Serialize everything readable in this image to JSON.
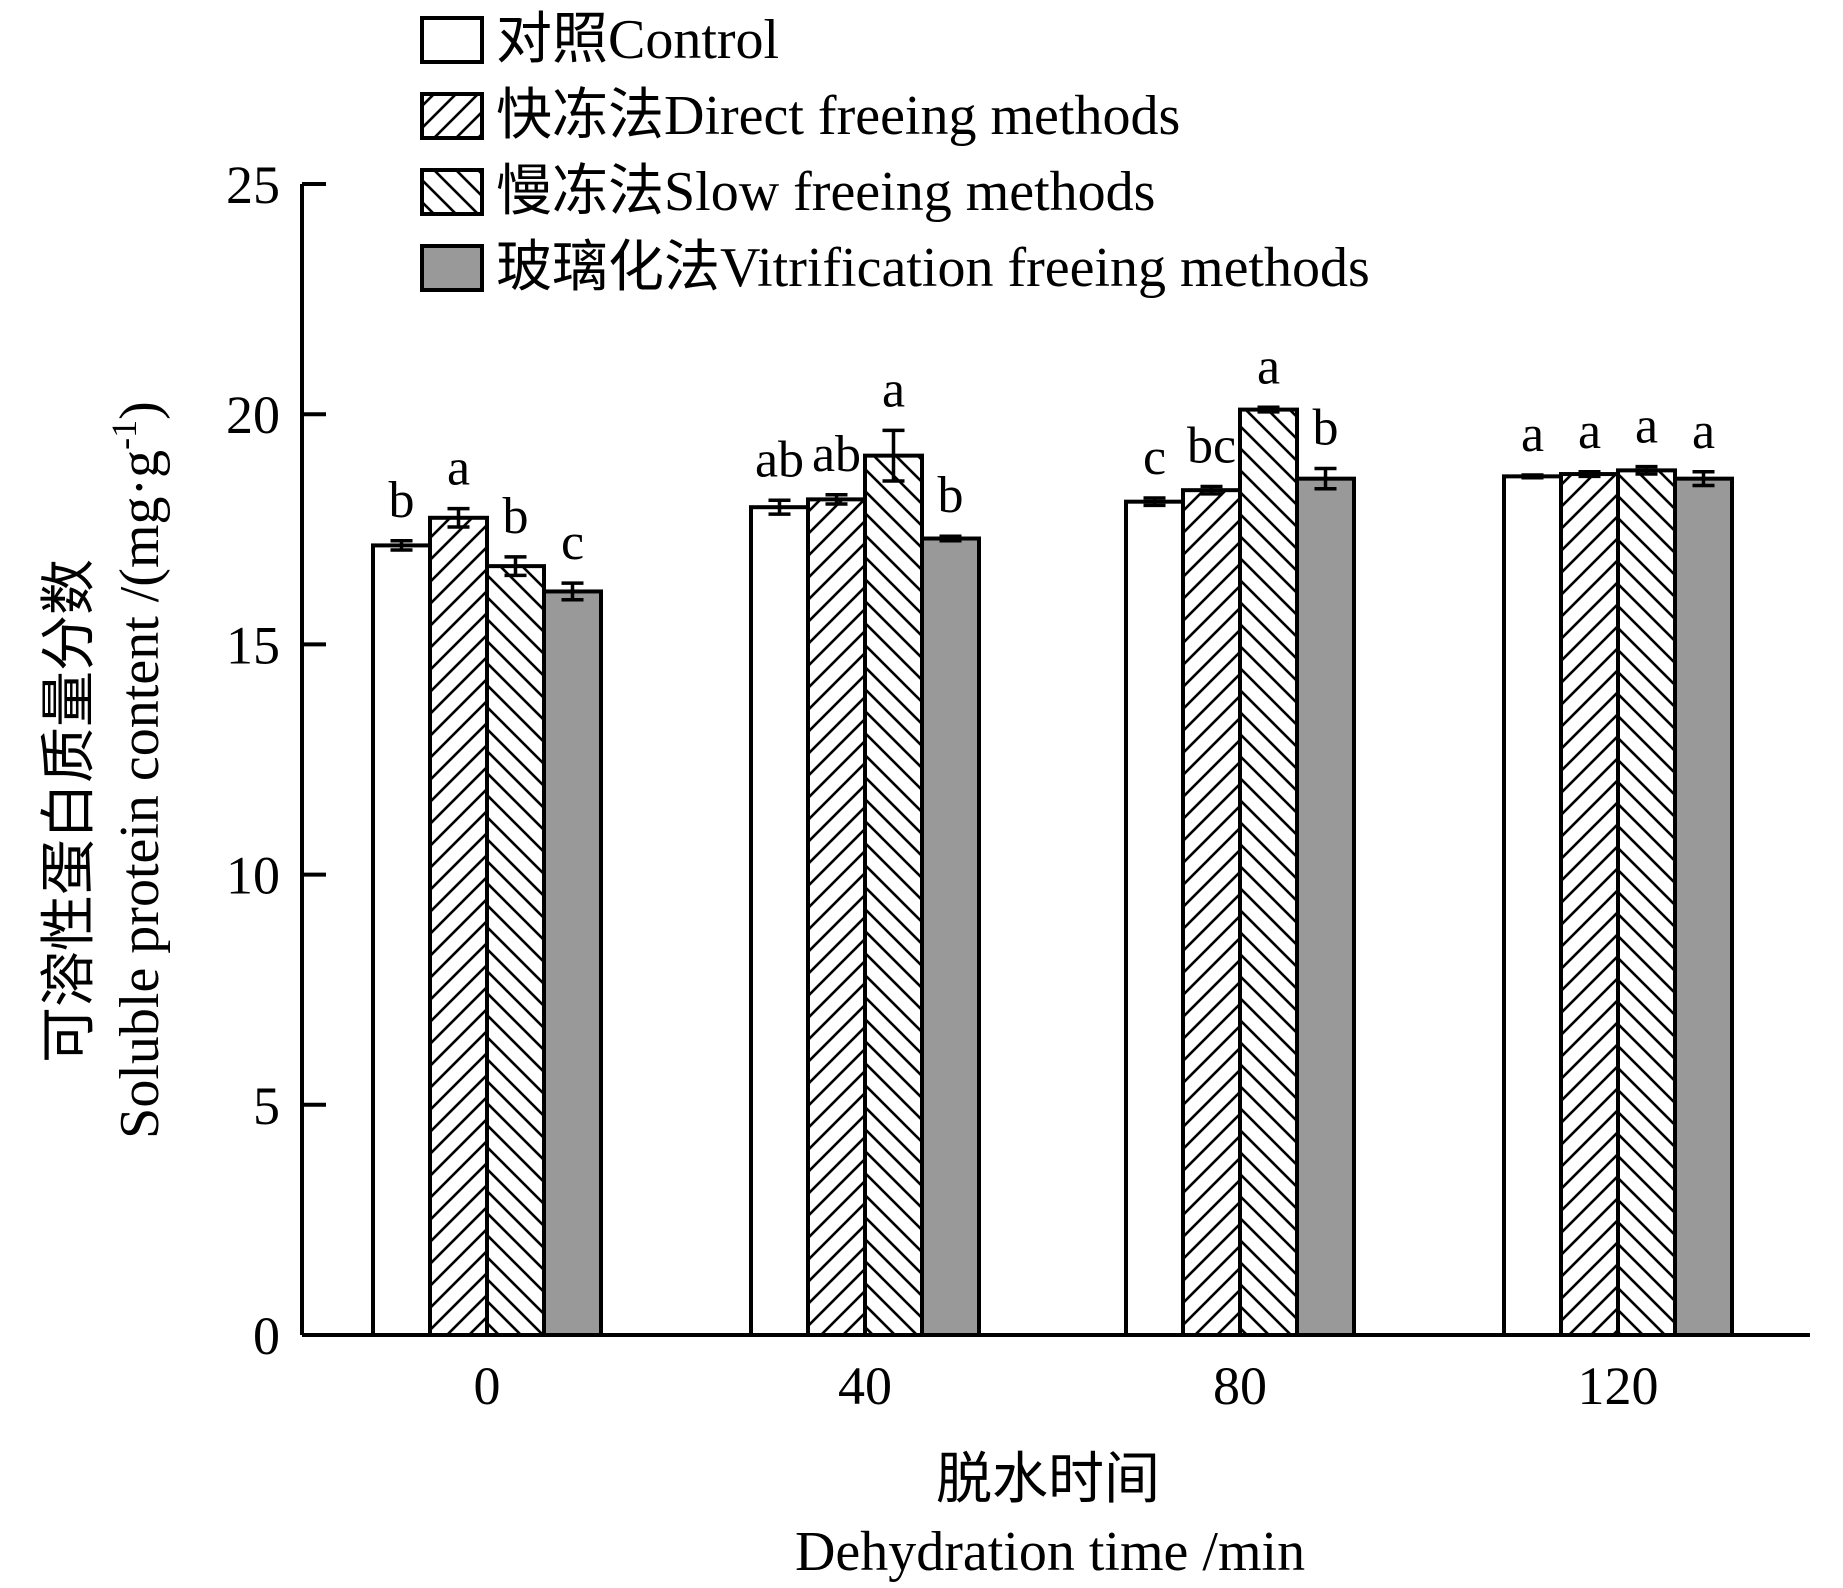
{
  "chart_data": {
    "type": "bar",
    "x": {
      "label_cn": "脱水时间",
      "label_en": "Dehydration time /min",
      "categories": [
        "0",
        "40",
        "80",
        "120"
      ]
    },
    "y": {
      "label_cn": "可溶性蛋白质量分数",
      "label_en": "Soluble protein content /(mg·g",
      "label_sup": "-1",
      "label_end": ")",
      "ylim": [
        0,
        25
      ],
      "ticks": [
        "0",
        "5",
        "10",
        "15",
        "20",
        "25"
      ]
    },
    "legend_position": "top",
    "series": [
      {
        "name": "对照Control",
        "fill": "white",
        "color": "#ffffff",
        "values": [
          17.15,
          17.98,
          18.1,
          18.65
        ],
        "errors": [
          0.1,
          0.15,
          0.08,
          0.03
        ],
        "labels": [
          "b",
          "ab",
          "c",
          "a"
        ]
      },
      {
        "name": "快冻法Direct freeing methods",
        "fill": "hatch-forward",
        "color": "#ffffff",
        "values": [
          17.75,
          18.15,
          18.35,
          18.7
        ],
        "errors": [
          0.2,
          0.1,
          0.08,
          0.05
        ],
        "labels": [
          "a",
          "ab",
          "bc",
          "a"
        ]
      },
      {
        "name": "慢冻法Slow freeing methods",
        "fill": "hatch-backward",
        "color": "#ffffff",
        "values": [
          16.7,
          19.1,
          20.1,
          18.78
        ],
        "errors": [
          0.2,
          0.55,
          0.05,
          0.08
        ],
        "labels": [
          "b",
          "a",
          "a",
          "a"
        ]
      },
      {
        "name": "玻璃化法Vitrification freeing methods",
        "fill": "gray",
        "color": "#999999",
        "values": [
          16.15,
          17.3,
          18.6,
          18.6
        ],
        "errors": [
          0.18,
          0.05,
          0.22,
          0.15
        ],
        "labels": [
          "c",
          "b",
          "b",
          "a"
        ]
      }
    ]
  }
}
